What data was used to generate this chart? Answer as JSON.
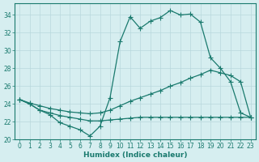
{
  "xlabel": "Humidex (Indice chaleur)",
  "bg_color": "#d6eef0",
  "grid_color": "#b8d8dc",
  "line_color": "#1a7a6e",
  "xlim": [
    -0.5,
    23.5
  ],
  "ylim": [
    20,
    35
  ],
  "yticks": [
    20,
    22,
    24,
    26,
    28,
    30,
    32,
    34
  ],
  "xticks": [
    0,
    1,
    2,
    3,
    4,
    5,
    6,
    7,
    8,
    9,
    10,
    11,
    12,
    13,
    14,
    15,
    16,
    17,
    18,
    19,
    20,
    21,
    22,
    23
  ],
  "series1_x": [
    0,
    1,
    2,
    3,
    4,
    5,
    6,
    7,
    8,
    9,
    10,
    11,
    12,
    13,
    14,
    15,
    16,
    17,
    18,
    19,
    20,
    21,
    22,
    23
  ],
  "series1_y": [
    24.5,
    24.0,
    23.3,
    22.8,
    21.9,
    21.5,
    21.1,
    20.4,
    21.5,
    24.7,
    31.0,
    33.8,
    32.5,
    33.3,
    33.7,
    34.5,
    34.0,
    34.1,
    33.2,
    29.2,
    28.0,
    26.5,
    23.0,
    22.5
  ],
  "series2_x": [
    0,
    1,
    2,
    3,
    4,
    5,
    6,
    7,
    8,
    9,
    10,
    11,
    12,
    13,
    14,
    15,
    16,
    17,
    18,
    19,
    20,
    21,
    22,
    23
  ],
  "series2_y": [
    24.5,
    24.0,
    23.3,
    23.0,
    22.7,
    22.5,
    22.3,
    22.1,
    22.1,
    22.2,
    22.3,
    22.4,
    22.5,
    22.5,
    22.5,
    22.5,
    22.5,
    22.5,
    22.5,
    22.5,
    22.5,
    22.5,
    22.5,
    22.5
  ],
  "series3_x": [
    0,
    1,
    2,
    3,
    4,
    5,
    6,
    7,
    8,
    9,
    10,
    11,
    12,
    13,
    14,
    15,
    16,
    17,
    18,
    19,
    20,
    21,
    22,
    23
  ],
  "series3_y": [
    24.5,
    24.1,
    23.8,
    23.5,
    23.3,
    23.1,
    23.0,
    22.9,
    23.0,
    23.3,
    23.8,
    24.3,
    24.7,
    25.1,
    25.5,
    26.0,
    26.4,
    26.9,
    27.3,
    27.8,
    27.5,
    27.2,
    26.5,
    22.5
  ],
  "marker": "+",
  "markersize": 4,
  "linewidth": 0.9,
  "tick_fontsize": 5.5,
  "xlabel_fontsize": 6.5
}
